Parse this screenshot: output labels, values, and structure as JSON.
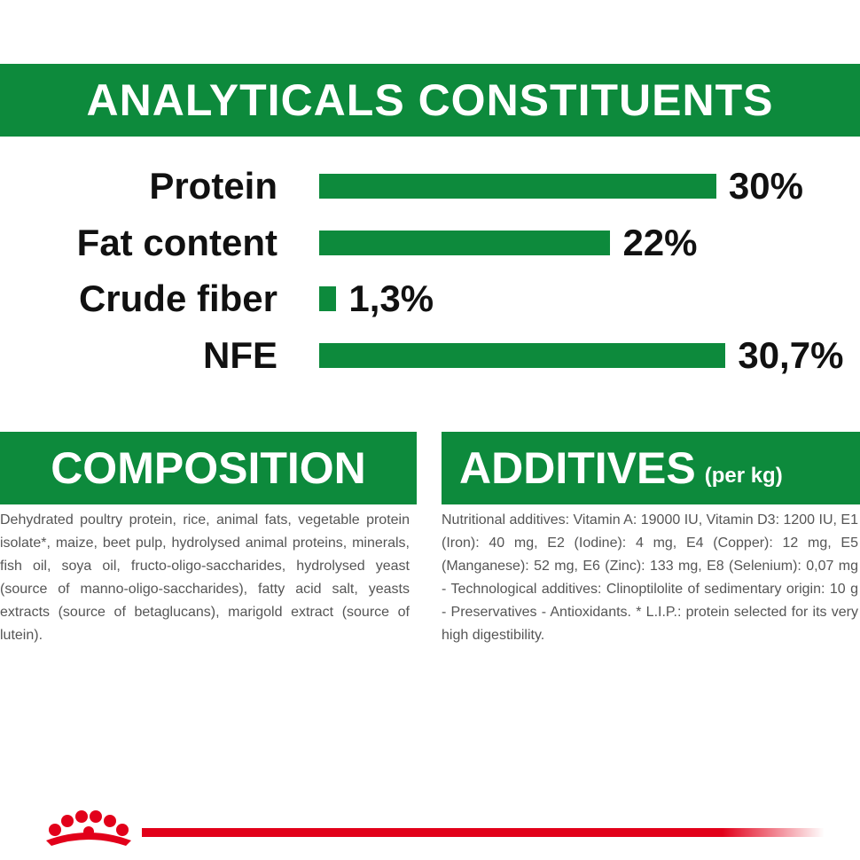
{
  "analyticals": {
    "title": "ANALYTICALS CONSTITUENTS",
    "items": [
      {
        "label": "Protein",
        "value": 30,
        "value_label": "30%"
      },
      {
        "label": "Fat content",
        "value": 22,
        "value_label": "22%"
      },
      {
        "label": "Crude fiber",
        "value": 1.3,
        "value_label": "1,3%"
      },
      {
        "label": "NFE",
        "value": 30.7,
        "value_label": "30,7%"
      }
    ]
  },
  "composition": {
    "title": "COMPOSITION",
    "text": "Dehydrated poultry protein, rice, animal fats, vegetable protein isolate*, maize, beet pulp, hydrolysed animal proteins, minerals, fish oil, soya oil, fructo-oligo-saccharides, hydrolysed yeast (source of manno-oligo-saccharides), fatty acid salt, yeasts extracts (source of betaglucans), marigold extract (source of lutein)."
  },
  "additives": {
    "title": "ADDITIVES",
    "subtitle": "(per kg)",
    "text": "Nutritional additives: Vitamin A: 19000 IU, Vitamin D3: 1200 IU, E1 (Iron): 40 mg, E2 (Iodine): 4 mg, E4 (Copper): 12 mg, E5 (Manganese): 52 mg, E6 (Zinc): 133 mg, E8 (Selenium): 0,07 mg - Technological additives: Clinoptilolite of sedimentary origin: 10 g - Preservatives - Antioxidants. * L.I.P.: protein selected for its very high digestibility."
  }
}
